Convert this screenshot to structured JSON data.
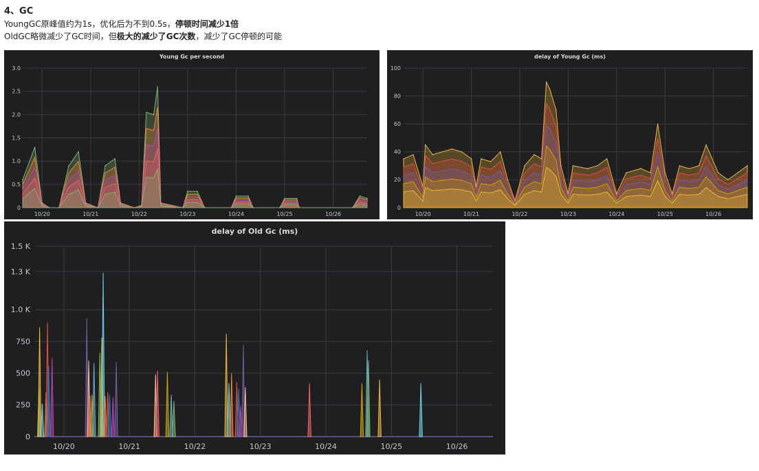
{
  "heading": "4、GC",
  "line1": {
    "plain": "YoungGC原峰值约为1s，优化后为不到0.5s，",
    "bold": "停顿时间减少1倍"
  },
  "line2": {
    "plain1": "OldGC略微减少了GC时间，但",
    "bold": "极大的减少了GC次数",
    "plain2": "，减少了GC停顿的可能"
  },
  "colors": {
    "panel_bg": "#1f1f22",
    "grid": "#3a3b3f",
    "text": "#c7c8cc",
    "series": [
      "#7eb26d",
      "#eab839",
      "#6ed0e0",
      "#ef843c",
      "#e24d42",
      "#1f78c1",
      "#ba43a9",
      "#705da0",
      "#f9ba8f",
      "#ea6460",
      "#cca300",
      "#64b0c8"
    ]
  },
  "chart_data": [
    {
      "type": "area",
      "title": "Young Gc per second",
      "x_ticks": [
        "10/20",
        "10/21",
        "10/22",
        "10/23",
        "10/24",
        "10/25",
        "10/26"
      ],
      "y_ticks": [
        "0",
        "0.5",
        "1.0",
        "1.5",
        "2.0",
        "2.5",
        "3.0"
      ],
      "ylim": [
        0,
        3.0
      ],
      "xlim": [
        -0.4,
        6.7
      ],
      "grid": true,
      "series_peaks": [
        {
          "x": -0.4,
          "y": 0.6
        },
        {
          "x": -0.15,
          "y": 1.3
        },
        {
          "x": 0.0,
          "y": 0.1
        },
        {
          "x": 0.15,
          "y": 0.0
        },
        {
          "x": 0.35,
          "y": 0.0
        },
        {
          "x": 0.55,
          "y": 0.9
        },
        {
          "x": 0.75,
          "y": 1.2
        },
        {
          "x": 0.9,
          "y": 0.1
        },
        {
          "x": 1.15,
          "y": 0.0
        },
        {
          "x": 1.3,
          "y": 0.9
        },
        {
          "x": 1.5,
          "y": 1.05
        },
        {
          "x": 1.62,
          "y": 0.1
        },
        {
          "x": 1.9,
          "y": 0.0
        },
        {
          "x": 2.05,
          "y": 0.05
        },
        {
          "x": 2.15,
          "y": 2.05
        },
        {
          "x": 2.3,
          "y": 2.0
        },
        {
          "x": 2.38,
          "y": 2.6
        },
        {
          "x": 2.45,
          "y": 0.1
        },
        {
          "x": 2.9,
          "y": 0.0
        },
        {
          "x": 3.0,
          "y": 0.35
        },
        {
          "x": 3.2,
          "y": 0.35
        },
        {
          "x": 3.35,
          "y": 0.0
        },
        {
          "x": 3.9,
          "y": 0.0
        },
        {
          "x": 4.0,
          "y": 0.25
        },
        {
          "x": 4.25,
          "y": 0.25
        },
        {
          "x": 4.35,
          "y": 0.0
        },
        {
          "x": 4.9,
          "y": 0.0
        },
        {
          "x": 5.0,
          "y": 0.2
        },
        {
          "x": 5.25,
          "y": 0.2
        },
        {
          "x": 5.3,
          "y": 0.0
        },
        {
          "x": 6.4,
          "y": 0.0
        },
        {
          "x": 6.55,
          "y": 0.25
        },
        {
          "x": 6.7,
          "y": 0.2
        }
      ]
    },
    {
      "type": "area",
      "title": "delay of Young Gc (ms)",
      "x_ticks": [
        "10/20",
        "10/21",
        "10/22",
        "10/23",
        "10/24",
        "10/25",
        "10/26"
      ],
      "y_ticks": [
        "0",
        "20",
        "40",
        "60",
        "80",
        "100"
      ],
      "ylim": [
        0,
        100
      ],
      "xlim": [
        -0.4,
        6.7
      ],
      "grid": true,
      "series_peaks": [
        {
          "x": -0.4,
          "y": 35
        },
        {
          "x": -0.2,
          "y": 38
        },
        {
          "x": 0.0,
          "y": 15
        },
        {
          "x": 0.05,
          "y": 45
        },
        {
          "x": 0.2,
          "y": 38
        },
        {
          "x": 0.4,
          "y": 40
        },
        {
          "x": 0.6,
          "y": 42
        },
        {
          "x": 0.8,
          "y": 40
        },
        {
          "x": 1.0,
          "y": 35
        },
        {
          "x": 1.1,
          "y": 15
        },
        {
          "x": 1.2,
          "y": 35
        },
        {
          "x": 1.4,
          "y": 33
        },
        {
          "x": 1.6,
          "y": 40
        },
        {
          "x": 1.75,
          "y": 20
        },
        {
          "x": 1.9,
          "y": 5
        },
        {
          "x": 2.1,
          "y": 30
        },
        {
          "x": 2.3,
          "y": 38
        },
        {
          "x": 2.45,
          "y": 35
        },
        {
          "x": 2.55,
          "y": 90
        },
        {
          "x": 2.62,
          "y": 85
        },
        {
          "x": 2.75,
          "y": 70
        },
        {
          "x": 2.85,
          "y": 30
        },
        {
          "x": 3.0,
          "y": 10
        },
        {
          "x": 3.1,
          "y": 30
        },
        {
          "x": 3.4,
          "y": 28
        },
        {
          "x": 3.6,
          "y": 30
        },
        {
          "x": 3.8,
          "y": 35
        },
        {
          "x": 4.0,
          "y": 10
        },
        {
          "x": 4.2,
          "y": 25
        },
        {
          "x": 4.5,
          "y": 28
        },
        {
          "x": 4.7,
          "y": 25
        },
        {
          "x": 4.85,
          "y": 60
        },
        {
          "x": 5.0,
          "y": 25
        },
        {
          "x": 5.15,
          "y": 10
        },
        {
          "x": 5.3,
          "y": 30
        },
        {
          "x": 5.5,
          "y": 28
        },
        {
          "x": 5.7,
          "y": 30
        },
        {
          "x": 5.85,
          "y": 45
        },
        {
          "x": 6.1,
          "y": 25
        },
        {
          "x": 6.3,
          "y": 20
        },
        {
          "x": 6.5,
          "y": 25
        },
        {
          "x": 6.7,
          "y": 30
        }
      ]
    },
    {
      "type": "bar",
      "title": "delay of Old Gc (ms)",
      "x_ticks": [
        "10/20",
        "10/21",
        "10/22",
        "10/23",
        "10/24",
        "10/25",
        "10/26"
      ],
      "y_ticks": [
        "0",
        "250",
        "500",
        "750",
        "1.0 K",
        "1.3 K",
        "1.5 K"
      ],
      "ylim": [
        0,
        1500
      ],
      "xlim": [
        -0.45,
        6.55
      ],
      "grid": true,
      "spikes": [
        {
          "x": -0.38,
          "y": 380
        },
        {
          "x": -0.37,
          "y": 860
        },
        {
          "x": -0.33,
          "y": 260
        },
        {
          "x": -0.27,
          "y": 350
        },
        {
          "x": -0.25,
          "y": 900
        },
        {
          "x": -0.23,
          "y": 560
        },
        {
          "x": -0.18,
          "y": 620
        },
        {
          "x": 0.35,
          "y": 930
        },
        {
          "x": 0.38,
          "y": 600
        },
        {
          "x": 0.4,
          "y": 320
        },
        {
          "x": 0.43,
          "y": 330
        },
        {
          "x": 0.46,
          "y": 580
        },
        {
          "x": 0.55,
          "y": 660
        },
        {
          "x": 0.58,
          "y": 780
        },
        {
          "x": 0.6,
          "y": 1290
        },
        {
          "x": 0.63,
          "y": 320
        },
        {
          "x": 0.67,
          "y": 350
        },
        {
          "x": 0.7,
          "y": 330
        },
        {
          "x": 0.75,
          "y": 310
        },
        {
          "x": 0.8,
          "y": 590
        },
        {
          "x": 1.4,
          "y": 490
        },
        {
          "x": 1.43,
          "y": 520
        },
        {
          "x": 1.58,
          "y": 510
        },
        {
          "x": 1.64,
          "y": 330
        },
        {
          "x": 1.68,
          "y": 280
        },
        {
          "x": 2.48,
          "y": 810
        },
        {
          "x": 2.52,
          "y": 420
        },
        {
          "x": 2.56,
          "y": 500
        },
        {
          "x": 2.64,
          "y": 430
        },
        {
          "x": 2.67,
          "y": 380
        },
        {
          "x": 2.7,
          "y": 240
        },
        {
          "x": 2.74,
          "y": 720
        },
        {
          "x": 2.77,
          "y": 390
        },
        {
          "x": 3.75,
          "y": 420
        },
        {
          "x": 4.55,
          "y": 420
        },
        {
          "x": 4.63,
          "y": 680
        },
        {
          "x": 4.65,
          "y": 600
        },
        {
          "x": 4.82,
          "y": 450
        },
        {
          "x": 5.45,
          "y": 420
        }
      ]
    }
  ]
}
